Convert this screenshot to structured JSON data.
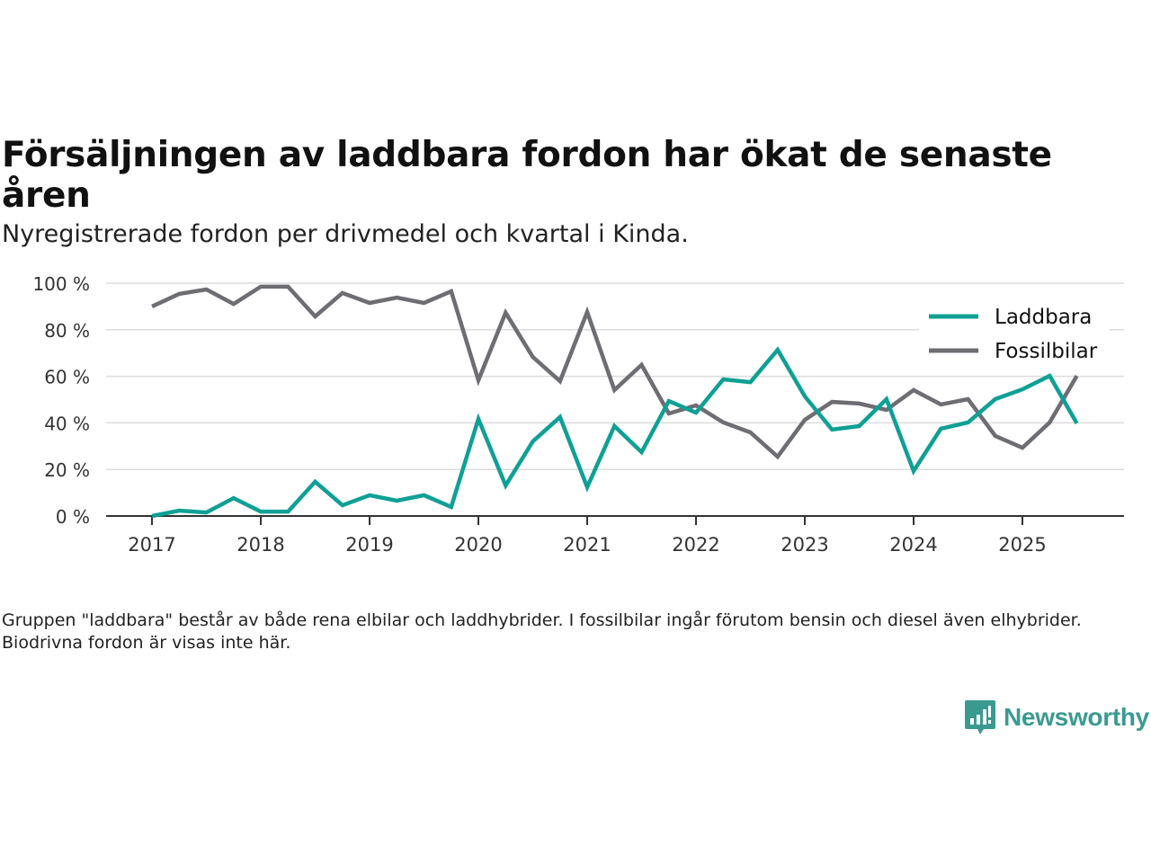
{
  "title": "Försäljningen av laddbara fordon har ökat de senaste åren",
  "subtitle": "Nyregistrerade fordon per drivmedel och kvartal i Kinda.",
  "note": "Gruppen \"laddbara\" består av både rena elbilar och laddhybrider. I fossilbilar ingår förutom bensin och diesel även elhybrider. Biodrivna fordon är visas inte här.",
  "logo": {
    "text": "Newsworthy",
    "icon": "bar-chart-speech-bubble-icon",
    "color": "#3b9a90"
  },
  "chart_data": {
    "type": "line",
    "title": "Försäljningen av laddbara fordon har ökat de senaste åren",
    "subtitle": "Nyregistrerade fordon per drivmedel och kvartal i Kinda.",
    "xlabel": "",
    "ylabel": "",
    "x_ticks": [
      "2017",
      "2018",
      "2019",
      "2020",
      "2021",
      "2022",
      "2023",
      "2024",
      "2025"
    ],
    "y_ticks": [
      "0 %",
      "20 %",
      "40 %",
      "60 %",
      "80 %",
      "100 %"
    ],
    "y_tick_values": [
      0,
      20,
      40,
      60,
      80,
      100
    ],
    "ylim": [
      0,
      100
    ],
    "xlim": [
      2016.5,
      2025.9
    ],
    "grid": true,
    "legend_position": "top-right",
    "x": [
      2017.0,
      2017.25,
      2017.5,
      2017.75,
      2018.0,
      2018.25,
      2018.5,
      2018.75,
      2019.0,
      2019.25,
      2019.5,
      2019.75,
      2020.0,
      2020.25,
      2020.5,
      2020.75,
      2021.0,
      2021.25,
      2021.5,
      2021.75,
      2022.0,
      2022.25,
      2022.5,
      2022.75,
      2023.0,
      2023.25,
      2023.5,
      2023.75,
      2024.0,
      2024.25,
      2024.5,
      2024.75,
      2025.0,
      2025.25,
      2025.5
    ],
    "series": [
      {
        "name": "Laddbara",
        "color": "#0fa095",
        "values": [
          0,
          2.3,
          1.5,
          7.7,
          1.9,
          1.9,
          14.7,
          4.6,
          8.9,
          6.6,
          8.9,
          3.9,
          41.7,
          13.1,
          32,
          42.5,
          12.4,
          38.6,
          27.4,
          49.4,
          44.4,
          58.7,
          57.5,
          71.4,
          51.4,
          37.1,
          38.6,
          50.2,
          19.3,
          37.5,
          40.2,
          50.2,
          54.4,
          60.2,
          39.8
        ]
      },
      {
        "name": "Fossilbilar",
        "color": "#6e6d74",
        "values": [
          90,
          95.4,
          97.3,
          91.1,
          98.5,
          98.5,
          85.7,
          95.8,
          91.5,
          93.8,
          91.5,
          96.5,
          58.3,
          87.3,
          68.3,
          57.9,
          87.6,
          54.1,
          64.9,
          44,
          47.5,
          40.2,
          35.9,
          25.5,
          41.3,
          49,
          48.3,
          45.6,
          54.1,
          47.9,
          50.2,
          34.4,
          29.3,
          40.2,
          60.2
        ]
      }
    ]
  }
}
